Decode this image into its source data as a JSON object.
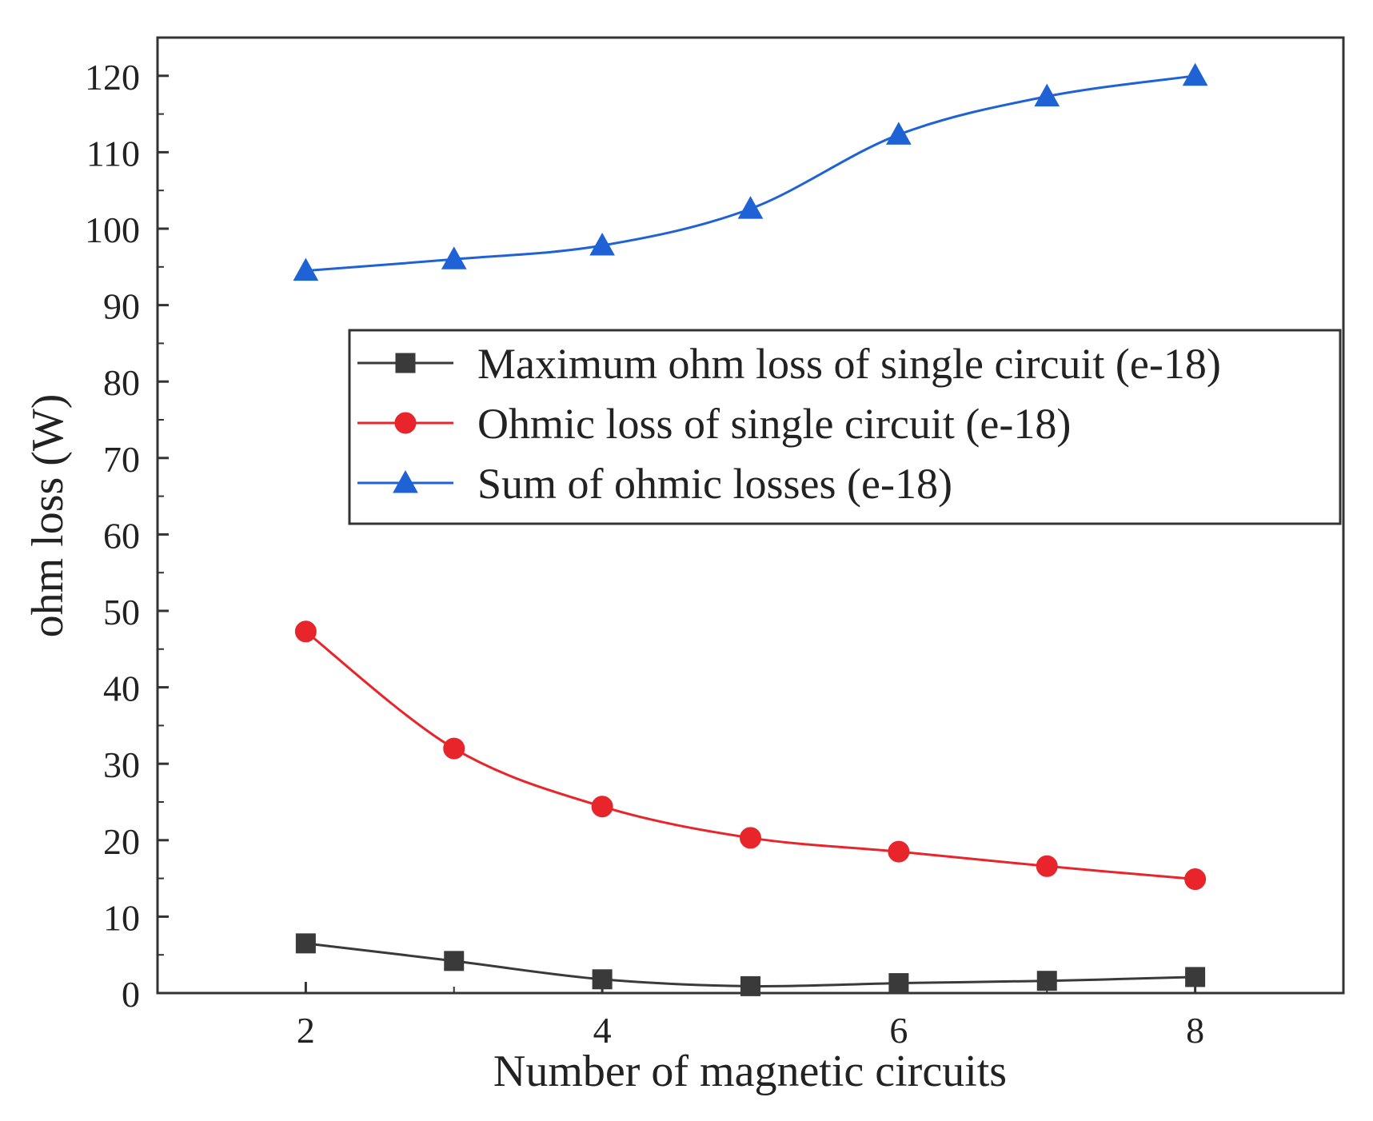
{
  "chart_data": {
    "type": "line",
    "title": "",
    "xlabel": "Number of magnetic circuits",
    "ylabel": "ohm loss (W)",
    "xlim": [
      1,
      9
    ],
    "ylim": [
      0,
      125
    ],
    "grid": false,
    "x_ticks": [
      2,
      4,
      6,
      8
    ],
    "x_tick_labels": [
      "2",
      "4",
      "6",
      "8"
    ],
    "y_ticks": [
      0,
      10,
      20,
      30,
      40,
      50,
      60,
      70,
      80,
      90,
      100,
      110,
      120
    ],
    "y_tick_labels": [
      "0",
      "10",
      "20",
      "30",
      "40",
      "50",
      "60",
      "70",
      "80",
      "90",
      "100",
      "110",
      "120"
    ],
    "legend_position": "center-right",
    "x": [
      2,
      3,
      4,
      5,
      6,
      7,
      8
    ],
    "series": [
      {
        "name": "Maximum ohm loss of single circuit (e-18)",
        "marker": "square",
        "color": "#3a3a3a",
        "values": [
          6.5,
          4.2,
          1.8,
          0.9,
          1.3,
          1.6,
          2.1
        ]
      },
      {
        "name": "Ohmic loss of single circuit (e-18)",
        "marker": "circle",
        "color": "#e8252b",
        "values": [
          47.3,
          32.0,
          24.4,
          20.3,
          18.5,
          16.6,
          14.9
        ]
      },
      {
        "name": "Sum of ohmic losses (e-18)",
        "marker": "triangle",
        "color": "#1f62d6",
        "values": [
          94.5,
          96.0,
          97.8,
          102.6,
          112.3,
          117.3,
          120.0
        ]
      }
    ]
  }
}
